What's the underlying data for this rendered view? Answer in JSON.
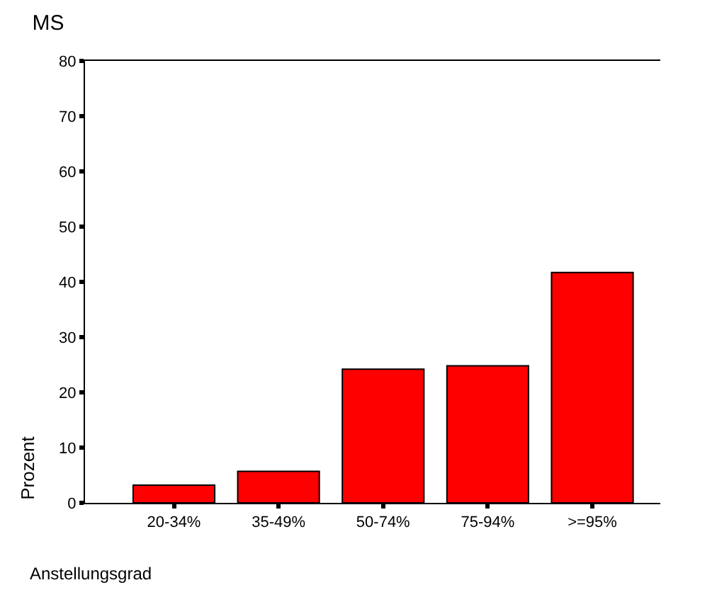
{
  "chart_data": {
    "type": "bar",
    "title": "MS",
    "xlabel": "Anstellungsgrad",
    "ylabel": "Prozent",
    "categories": [
      "20-34%",
      "35-49%",
      "50-74%",
      "75-94%",
      ">=95%"
    ],
    "values": [
      3.2,
      5.7,
      24.2,
      24.8,
      41.7
    ],
    "color": "#ff0000",
    "ylim": [
      0,
      80
    ],
    "yticks": [
      0,
      10,
      20,
      30,
      40,
      50,
      60,
      70,
      80
    ]
  }
}
